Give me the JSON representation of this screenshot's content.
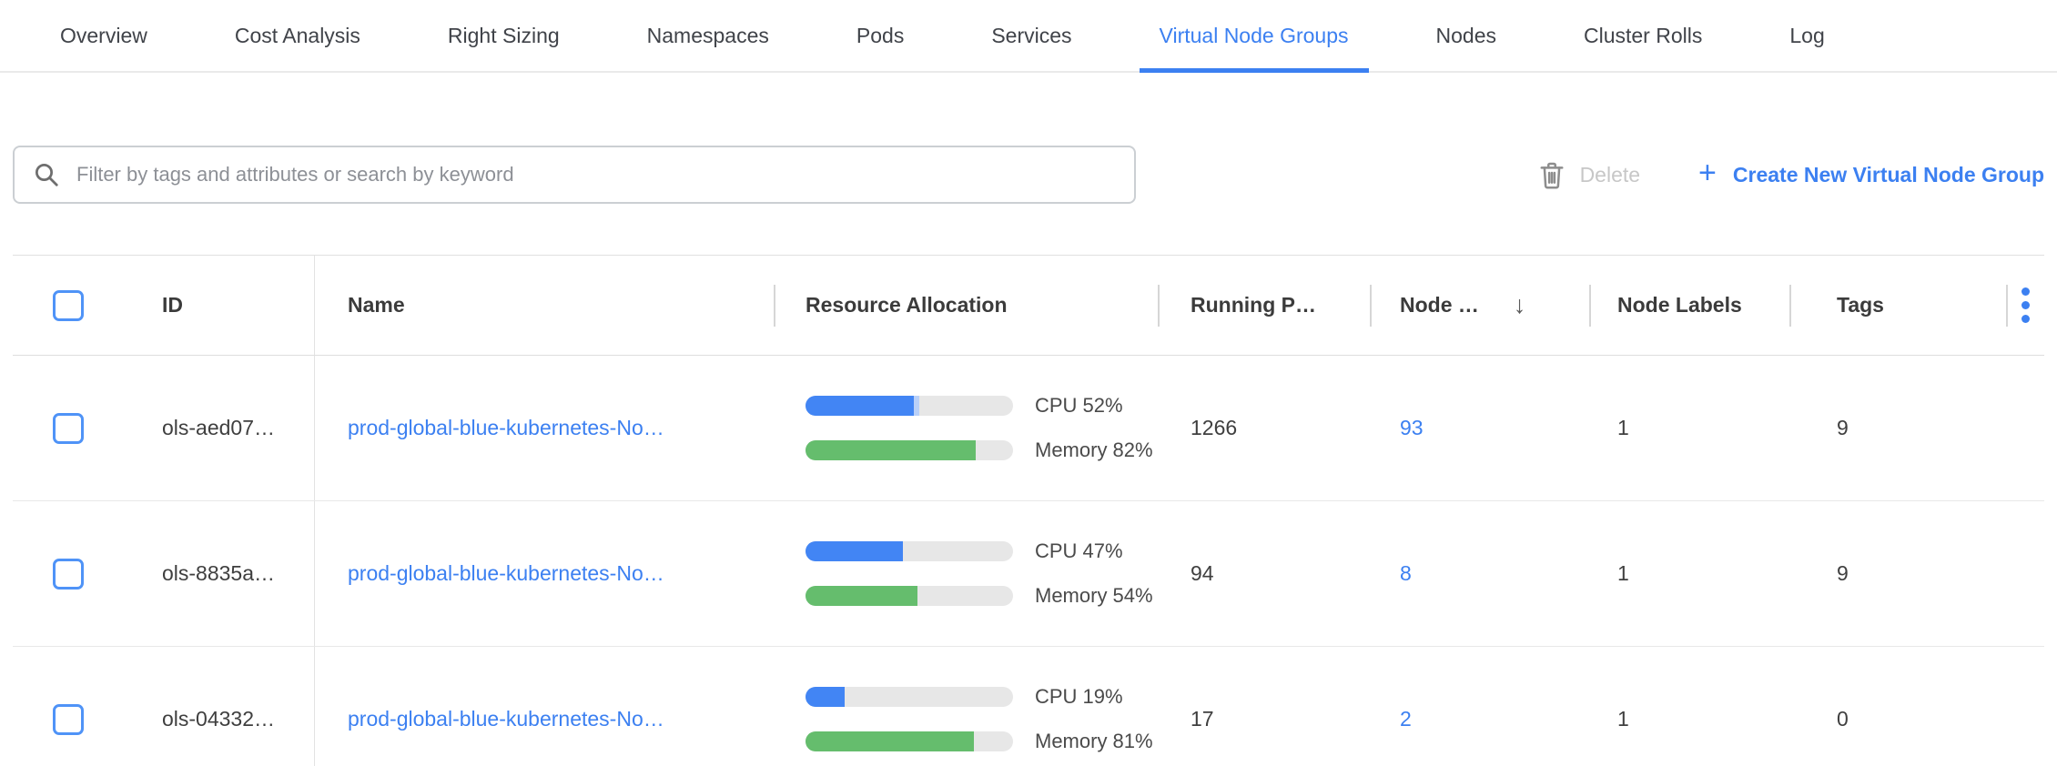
{
  "tabs": [
    {
      "label": "Overview",
      "active": false
    },
    {
      "label": "Cost Analysis",
      "active": false
    },
    {
      "label": "Right Sizing",
      "active": false
    },
    {
      "label": "Namespaces",
      "active": false
    },
    {
      "label": "Pods",
      "active": false
    },
    {
      "label": "Services",
      "active": false
    },
    {
      "label": "Virtual Node Groups",
      "active": true
    },
    {
      "label": "Nodes",
      "active": false
    },
    {
      "label": "Cluster Rolls",
      "active": false
    },
    {
      "label": "Log",
      "active": false
    }
  ],
  "toolbar": {
    "search_placeholder": "Filter by tags and attributes or search by keyword",
    "search_value": "",
    "delete_label": "Delete",
    "create_label": "Create New Virtual Node Group",
    "plus_glyph": "+"
  },
  "table": {
    "headers": {
      "id": "ID",
      "name": "Name",
      "resource": "Resource Allocation",
      "running": "Running P…",
      "node": "Node …",
      "labels": "Node Labels",
      "tags": "Tags"
    },
    "sort": {
      "column": "Node …",
      "direction": "desc",
      "arrow_glyph": "↓"
    },
    "select_all_checked": false,
    "rows": [
      {
        "id": "ols-aed07…",
        "name": "prod-global-blue-kubernetes-No…",
        "cpu_label": "CPU 52%",
        "cpu_pct": 52,
        "cpu_light_pct": 3,
        "memory_label": "Memory 82%",
        "memory_pct": 82,
        "running_pods": "1266",
        "nodes": "93",
        "node_labels": "1",
        "tags": "9",
        "checked": false
      },
      {
        "id": "ols-8835a…",
        "name": "prod-global-blue-kubernetes-No…",
        "cpu_label": "CPU 47%",
        "cpu_pct": 47,
        "cpu_light_pct": 0,
        "memory_label": "Memory 54%",
        "memory_pct": 54,
        "running_pods": "94",
        "nodes": "8",
        "node_labels": "1",
        "tags": "9",
        "checked": false
      },
      {
        "id": "ols-04332…",
        "name": "prod-global-blue-kubernetes-No…",
        "cpu_label": "CPU 19%",
        "cpu_pct": 19,
        "cpu_light_pct": 0,
        "memory_label": "Memory 81%",
        "memory_pct": 81,
        "running_pods": "17",
        "nodes": "2",
        "node_labels": "1",
        "tags": "0",
        "checked": false
      }
    ]
  },
  "colors": {
    "accent": "#3c80f1",
    "bar_cpu": "#4285f4",
    "bar_cpu_light": "#b9d0f8",
    "bar_memory": "#65bd6d",
    "bar_track": "#e7e7e7"
  }
}
